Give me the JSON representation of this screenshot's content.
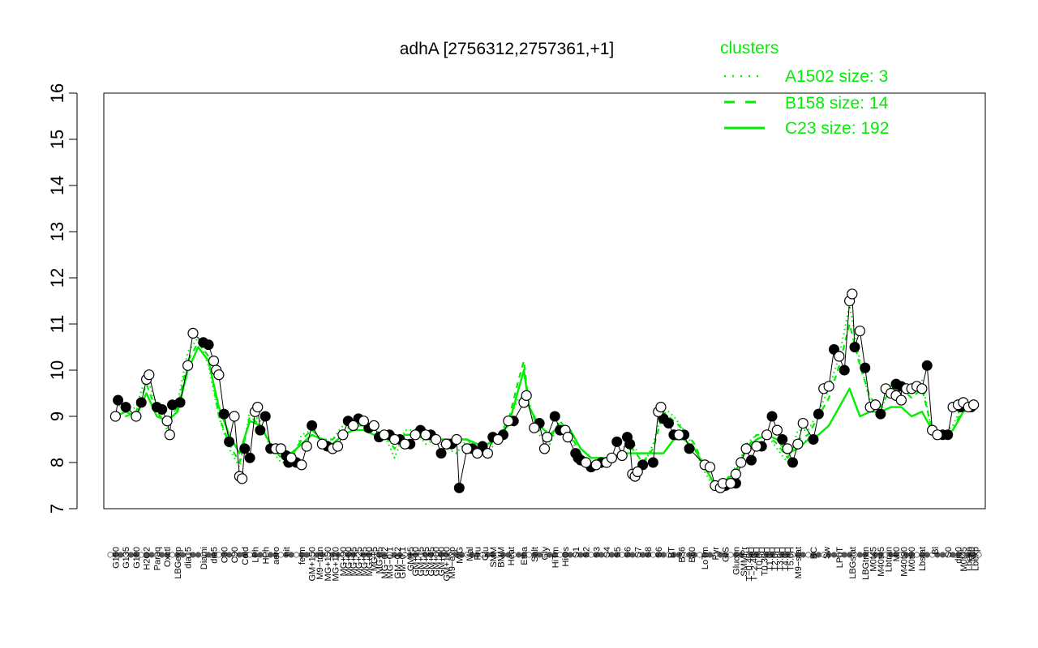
{
  "chart_data": {
    "type": "line",
    "title": "adhA [2756312,2757361,+1]",
    "ylim": [
      7,
      16
    ],
    "yticks": [
      7,
      8,
      9,
      10,
      11,
      12,
      13,
      14,
      15,
      16
    ],
    "grid": false,
    "legend": {
      "title": "clusters",
      "placement": "top-right",
      "color": "#00ee00",
      "entries": [
        {
          "label": "A1502 size: 3",
          "style": "dotted"
        },
        {
          "label": "B158 size: 14",
          "style": "dashed"
        },
        {
          "label": "C23 size: 192",
          "style": "solid"
        }
      ]
    },
    "xtick_labels": [
      {
        "x": 1,
        "label": "G150"
      },
      {
        "x": 3,
        "label": "G135"
      },
      {
        "x": 5,
        "label": "G180"
      },
      {
        "x": 7,
        "label": "H2O2"
      },
      {
        "x": 9,
        "label": "Paraq"
      },
      {
        "x": 11,
        "label": "Oxctl"
      },
      {
        "x": 13,
        "label": "LBGexp"
      },
      {
        "x": 15,
        "label": "dia15"
      },
      {
        "x": 18,
        "label": "Diami"
      },
      {
        "x": 20,
        "label": "dia5"
      },
      {
        "x": 22,
        "label": "C30"
      },
      {
        "x": 24,
        "label": "C90"
      },
      {
        "x": 26,
        "label": "Cold"
      },
      {
        "x": 28,
        "label": "LPh"
      },
      {
        "x": 30,
        "label": "HPh"
      },
      {
        "x": 32,
        "label": "aero"
      },
      {
        "x": 34,
        "label": "nit"
      },
      {
        "x": 37,
        "label": "ferm"
      },
      {
        "x": 39,
        "label": "GM+150"
      },
      {
        "x": 40.5,
        "label": "M9−tran"
      },
      {
        "x": 42,
        "label": "MG+150"
      },
      {
        "x": 43.5,
        "label": "MG+120"
      },
      {
        "x": 45,
        "label": "MG+90"
      },
      {
        "x": 46,
        "label": "MG+60"
      },
      {
        "x": 47,
        "label": "MG+45"
      },
      {
        "x": 48,
        "label": "MG+25"
      },
      {
        "x": 49,
        "label": "MG+15"
      },
      {
        "x": 50,
        "label": "MG+10"
      },
      {
        "x": 51,
        "label": "MG+5"
      },
      {
        "x": 52,
        "label": "MG+t5"
      },
      {
        "x": 53,
        "label": "MG−0.2"
      },
      {
        "x": 54,
        "label": "MG−0.1"
      },
      {
        "x": 55.5,
        "label": "GM−0.2"
      },
      {
        "x": 56.5,
        "label": "GM−0.1"
      },
      {
        "x": 58,
        "label": "GM+5"
      },
      {
        "x": 59,
        "label": "GM+10"
      },
      {
        "x": 60,
        "label": "GM+15"
      },
      {
        "x": 61,
        "label": "GM+25"
      },
      {
        "x": 62,
        "label": "GM+45"
      },
      {
        "x": 63,
        "label": "GM+60"
      },
      {
        "x": 64,
        "label": "GM+90"
      },
      {
        "x": 65,
        "label": "GM+120"
      },
      {
        "x": 66,
        "label": "M9−exp"
      },
      {
        "x": 67.5,
        "label": "M/G"
      },
      {
        "x": 69.5,
        "label": "Mal"
      },
      {
        "x": 71,
        "label": "Fru"
      },
      {
        "x": 72.5,
        "label": "Glu"
      },
      {
        "x": 74,
        "label": "SMM"
      },
      {
        "x": 75.5,
        "label": "BMM"
      },
      {
        "x": 77.5,
        "label": "Heat"
      },
      {
        "x": 80,
        "label": "Etha"
      },
      {
        "x": 82,
        "label": "Salt"
      },
      {
        "x": 84,
        "label": "Gly"
      },
      {
        "x": 86,
        "label": "HiTm"
      },
      {
        "x": 88,
        "label": "HiOs"
      },
      {
        "x": 90,
        "label": "S1"
      },
      {
        "x": 92,
        "label": "S2"
      },
      {
        "x": 94,
        "label": "S3"
      },
      {
        "x": 96,
        "label": "S4"
      },
      {
        "x": 98,
        "label": "S5"
      },
      {
        "x": 100,
        "label": "S6"
      },
      {
        "x": 102,
        "label": "S7"
      },
      {
        "x": 104,
        "label": "S8"
      },
      {
        "x": 106,
        "label": "S6"
      },
      {
        "x": 108.5,
        "label": "BT"
      },
      {
        "x": 110.5,
        "label": "B36"
      },
      {
        "x": 112.5,
        "label": "B60"
      },
      {
        "x": 115,
        "label": "LoTm"
      },
      {
        "x": 117,
        "label": "Pyr"
      },
      {
        "x": 119,
        "label": "G/S"
      },
      {
        "x": 121,
        "label": "Glucon"
      },
      {
        "x": 122.5,
        "label": "SMMPr"
      },
      {
        "x": 123.5,
        "label": "T−0.40H"
      },
      {
        "x": 124.5,
        "label": "T−2.40H"
      },
      {
        "x": 125.5,
        "label": "T0.0H"
      },
      {
        "x": 126.5,
        "label": "T0.30H"
      },
      {
        "x": 127.5,
        "label": "T1.0H"
      },
      {
        "x": 128.5,
        "label": "T2.0H"
      },
      {
        "x": 129.5,
        "label": "T3.0H"
      },
      {
        "x": 130.5,
        "label": "T4.0H"
      },
      {
        "x": 131.5,
        "label": "T5.0H"
      },
      {
        "x": 133,
        "label": "M9−stat"
      },
      {
        "x": 136,
        "label": "BC"
      },
      {
        "x": 138.5,
        "label": "Sw"
      },
      {
        "x": 141,
        "label": "LPhT"
      },
      {
        "x": 143.5,
        "label": "LBGstat"
      },
      {
        "x": 146,
        "label": "LBGtran"
      },
      {
        "x": 147.5,
        "label": "M0t45"
      },
      {
        "x": 149,
        "label": "M40t45"
      },
      {
        "x": 150.5,
        "label": "Lbtran"
      },
      {
        "x": 152,
        "label": "Mt0"
      },
      {
        "x": 153.5,
        "label": "M40t90"
      },
      {
        "x": 155,
        "label": "M0t90"
      },
      {
        "x": 157,
        "label": "Lbstat"
      },
      {
        "x": 159.5,
        "label": "Bl"
      },
      {
        "x": 162,
        "label": "S0"
      },
      {
        "x": 164,
        "label": "dia0"
      },
      {
        "x": 165,
        "label": "M0t45"
      },
      {
        "x": 166,
        "label": "Lbexp"
      },
      {
        "x": 166.6,
        "label": "Mt0"
      },
      {
        "x": 167.3,
        "label": "Lbexp"
      }
    ],
    "series": [
      {
        "line": "solid",
        "x": [
          1,
          3,
          5,
          7,
          9,
          11,
          13,
          15,
          17,
          19,
          21,
          23,
          25,
          27,
          29,
          31,
          33,
          35,
          37,
          39,
          41,
          43,
          45,
          47,
          49,
          51,
          53,
          55,
          57,
          59,
          61,
          63,
          65,
          67,
          69,
          71,
          73,
          75,
          77,
          79,
          80,
          81,
          83,
          85,
          87,
          89,
          91,
          93,
          95,
          97,
          99,
          101,
          103,
          105,
          107,
          109,
          111,
          113,
          115,
          117,
          119,
          121,
          123,
          125,
          127,
          129,
          131,
          133,
          135,
          137,
          139,
          141,
          143,
          145,
          147,
          149,
          151,
          153,
          155,
          157,
          159,
          161,
          163,
          165,
          167
        ],
        "y": [
          9.0,
          9.1,
          9.0,
          9.5,
          9.0,
          8.9,
          9.1,
          10.0,
          10.5,
          10.2,
          9.2,
          8.6,
          8.2,
          8.9,
          8.8,
          8.4,
          8.3,
          8.2,
          8.4,
          8.6,
          8.5,
          8.4,
          8.6,
          8.7,
          8.7,
          8.6,
          8.6,
          8.5,
          8.6,
          8.6,
          8.5,
          8.5,
          8.5,
          8.5,
          8.5,
          8.4,
          8.4,
          8.6,
          8.8,
          9.6,
          10.0,
          9.2,
          8.8,
          8.6,
          8.8,
          8.7,
          8.3,
          8.1,
          8.1,
          8.1,
          8.2,
          8.2,
          8.2,
          8.2,
          8.2,
          8.5,
          8.5,
          8.3,
          7.9,
          7.5,
          7.6,
          7.8,
          8.3,
          8.5,
          8.6,
          8.5,
          8.2,
          8.3,
          8.5,
          8.6,
          8.8,
          9.2,
          9.6,
          9.0,
          9.1,
          9.1,
          9.2,
          9.2,
          9.0,
          9.1,
          8.7,
          8.6,
          8.7,
          9.1,
          9.2
        ]
      },
      {
        "line": "dashed",
        "x": [
          1,
          3,
          5,
          7,
          9,
          11,
          13,
          15,
          17,
          19,
          21,
          23,
          25,
          27,
          29,
          31,
          33,
          35,
          37,
          39,
          41,
          43,
          45,
          47,
          49,
          51,
          53,
          55,
          57,
          59,
          61,
          63,
          65,
          67,
          69,
          71,
          73,
          75,
          77,
          79,
          80,
          81,
          83,
          85,
          87,
          89,
          91,
          93,
          95,
          97,
          99,
          101,
          103,
          105,
          107,
          109,
          111,
          113,
          115,
          117,
          119,
          121,
          123,
          125,
          127,
          129,
          131,
          133,
          135,
          137,
          139,
          141,
          143,
          145,
          147,
          149,
          151,
          153,
          155,
          157,
          159,
          161,
          163,
          165,
          167
        ],
        "y": [
          9.1,
          9.0,
          9.1,
          9.7,
          9.1,
          8.8,
          9.2,
          10.2,
          10.6,
          10.3,
          9.0,
          8.4,
          8.0,
          9.0,
          8.8,
          8.4,
          8.1,
          8.1,
          8.5,
          8.7,
          8.5,
          8.5,
          8.7,
          8.8,
          8.8,
          8.7,
          8.6,
          8.3,
          8.6,
          8.6,
          8.5,
          8.5,
          8.4,
          8.4,
          8.5,
          8.3,
          8.3,
          8.6,
          8.9,
          9.8,
          10.2,
          9.2,
          8.7,
          8.5,
          8.9,
          8.6,
          8.2,
          8.0,
          7.9,
          8.0,
          8.2,
          8.3,
          8.0,
          8.3,
          9.1,
          8.9,
          8.7,
          8.4,
          7.9,
          7.5,
          7.6,
          7.9,
          8.3,
          8.6,
          8.6,
          8.4,
          8.1,
          8.5,
          8.6,
          9.0,
          9.4,
          10.1,
          11.0,
          10.1,
          9.4,
          9.2,
          9.6,
          9.6,
          9.4,
          9.6,
          8.7,
          8.6,
          8.7,
          9.2,
          9.2
        ]
      },
      {
        "line": "dotted",
        "x": [
          1,
          3,
          5,
          7,
          9,
          11,
          13,
          15,
          17,
          19,
          21,
          23,
          25,
          27,
          29,
          31,
          33,
          35,
          37,
          39,
          41,
          43,
          45,
          47,
          49,
          51,
          53,
          55,
          57,
          59,
          61,
          63,
          65,
          67,
          69,
          71,
          73,
          75,
          77,
          79,
          80,
          81,
          83,
          85,
          87,
          89,
          91,
          93,
          95,
          97,
          99,
          101,
          103,
          105,
          107,
          109,
          111,
          113,
          115,
          117,
          119,
          121,
          123,
          125,
          127,
          129,
          131,
          133,
          135,
          137,
          139,
          141,
          143,
          145,
          147,
          149,
          151,
          153,
          155,
          157,
          159,
          161,
          163,
          165,
          167
        ],
        "y": [
          9.3,
          9.1,
          9.2,
          9.9,
          9.2,
          8.7,
          9.3,
          10.4,
          10.7,
          10.1,
          9.0,
          8.3,
          7.9,
          9.1,
          8.9,
          8.3,
          8.0,
          8.0,
          8.6,
          8.7,
          8.5,
          8.5,
          8.8,
          8.9,
          8.8,
          8.7,
          8.6,
          8.1,
          8.7,
          8.7,
          8.4,
          8.5,
          8.3,
          8.2,
          8.5,
          8.2,
          8.2,
          8.5,
          8.9,
          9.4,
          9.4,
          9.3,
          8.6,
          8.4,
          8.9,
          8.6,
          8.0,
          7.9,
          7.9,
          8.0,
          8.3,
          8.5,
          7.9,
          8.4,
          9.2,
          9.0,
          8.7,
          8.3,
          7.8,
          7.4,
          7.5,
          7.8,
          8.4,
          8.6,
          8.6,
          8.3,
          8.0,
          8.7,
          8.7,
          9.1,
          9.6,
          10.3,
          11.4,
          10.2,
          9.3,
          9.1,
          9.7,
          9.7,
          9.5,
          9.8,
          8.6,
          8.6,
          8.8,
          9.3,
          9.3
        ]
      }
    ],
    "points_open": {
      "x": [
        1,
        5,
        7,
        7.5,
        11,
        11.5,
        15,
        16,
        20,
        20.5,
        21,
        24,
        25,
        25.5,
        28,
        28.5,
        32,
        33,
        35,
        37,
        38,
        41,
        43,
        44,
        45,
        47,
        49,
        51,
        53,
        55,
        57,
        59,
        61,
        63,
        65,
        67,
        69,
        71,
        73,
        75,
        77,
        80,
        80.5,
        82,
        84,
        84.5,
        88,
        88.5,
        92,
        94,
        96,
        97,
        99,
        101,
        101.5,
        102,
        106,
        106.5,
        110,
        115,
        116,
        117,
        118,
        118.5,
        120,
        121,
        122,
        123,
        125,
        127,
        129,
        131,
        133,
        134,
        138,
        139,
        141,
        143,
        143.5,
        145,
        147,
        148,
        150,
        151,
        152,
        153,
        154,
        155,
        156,
        157,
        159,
        160,
        163,
        164,
        165,
        166,
        167
      ],
      "y": [
        9.0,
        9.0,
        9.8,
        9.9,
        8.9,
        8.6,
        10.1,
        10.8,
        10.2,
        10.0,
        9.9,
        9.0,
        7.7,
        7.65,
        9.1,
        9.2,
        8.3,
        8.3,
        8.1,
        7.95,
        8.35,
        8.4,
        8.3,
        8.35,
        8.6,
        8.8,
        8.9,
        8.8,
        8.6,
        8.5,
        8.4,
        8.6,
        8.6,
        8.5,
        8.4,
        8.5,
        8.3,
        8.2,
        8.2,
        8.5,
        8.9,
        9.3,
        9.45,
        8.75,
        8.3,
        8.55,
        8.7,
        8.55,
        8.0,
        7.95,
        8.0,
        8.1,
        8.15,
        7.75,
        7.7,
        7.8,
        9.1,
        9.2,
        8.6,
        7.95,
        7.9,
        7.5,
        7.45,
        7.55,
        7.55,
        7.75,
        8.0,
        8.3,
        8.35,
        8.6,
        8.7,
        8.3,
        8.4,
        8.85,
        9.6,
        9.65,
        10.3,
        11.5,
        11.65,
        10.85,
        9.2,
        9.25,
        9.6,
        9.5,
        9.45,
        9.35,
        9.6,
        9.6,
        9.65,
        9.6,
        8.7,
        8.6,
        9.2,
        9.25,
        9.3,
        9.2,
        9.25
      ]
    },
    "points_filled": {
      "x": [
        1.5,
        3,
        6,
        9,
        10,
        12,
        13.5,
        18,
        19,
        22,
        23,
        26,
        27,
        29,
        30,
        31,
        34,
        34.5,
        36,
        39,
        42,
        46,
        48,
        50,
        52,
        54,
        56,
        58,
        60,
        62,
        64,
        66,
        67.5,
        70,
        72,
        74,
        76,
        78,
        83,
        86,
        87,
        90,
        90.5,
        91,
        93,
        95,
        98,
        100,
        100.5,
        103,
        105,
        107,
        108,
        109,
        111,
        112,
        119,
        121,
        124,
        126,
        128,
        130,
        132,
        136,
        137,
        140,
        142,
        144,
        146,
        149,
        152,
        153,
        156,
        158,
        161,
        162,
        164.5,
        166.5
      ],
      "y": [
        9.35,
        9.2,
        9.3,
        9.2,
        9.15,
        9.25,
        9.3,
        10.6,
        10.55,
        9.05,
        8.45,
        8.3,
        8.1,
        8.7,
        9.0,
        8.3,
        8.15,
        8.0,
        8.0,
        8.8,
        8.35,
        8.9,
        8.95,
        8.75,
        8.55,
        8.6,
        8.5,
        8.4,
        8.7,
        8.6,
        8.2,
        8.4,
        7.45,
        8.3,
        8.35,
        8.55,
        8.6,
        8.9,
        8.85,
        9.0,
        8.7,
        8.2,
        8.1,
        8.05,
        7.9,
        8.0,
        8.45,
        8.55,
        8.4,
        7.95,
        8.0,
        8.95,
        8.85,
        8.6,
        8.6,
        8.3,
        7.5,
        7.55,
        8.05,
        8.35,
        9.0,
        8.5,
        8.0,
        8.5,
        9.05,
        10.45,
        10.0,
        10.5,
        10.05,
        9.05,
        9.7,
        9.65,
        9.65,
        10.1,
        8.6,
        8.6,
        9.2,
        9.2
      ]
    }
  }
}
